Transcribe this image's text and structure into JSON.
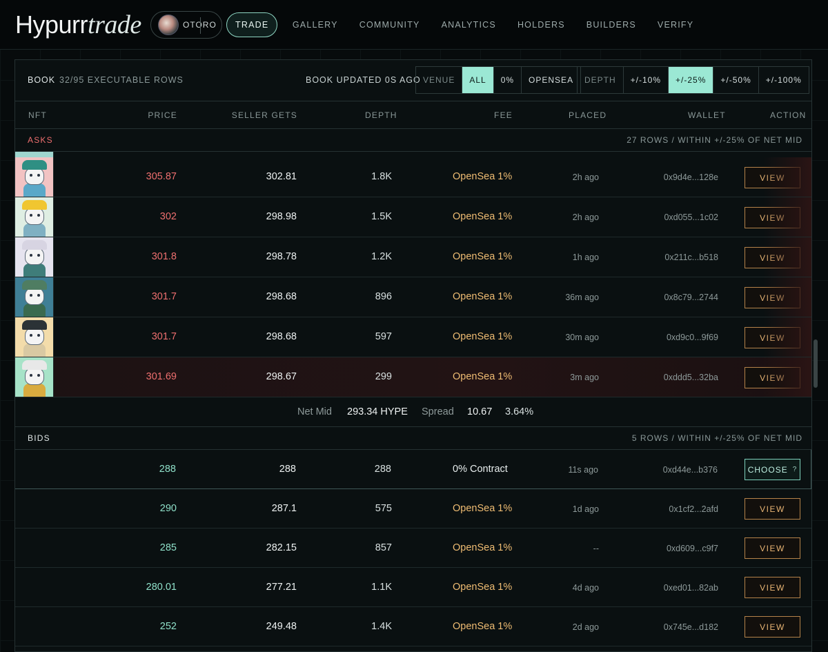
{
  "app": {
    "logo_main": "Hypurr",
    "logo_italic": "trade",
    "collection": "OTORO"
  },
  "nav": [
    "TRADE",
    "GALLERY",
    "COMMUNITY",
    "ANALYTICS",
    "HOLDERS",
    "BUILDERS",
    "VERIFY"
  ],
  "book": {
    "title": "BOOK",
    "rows_info": "32/95 EXECUTABLE ROWS",
    "updated": "BOOK UPDATED 0S AGO",
    "venue_label": "VENUE",
    "venue_options": [
      "ALL",
      "0%",
      "OPENSEA"
    ],
    "venue_selected": "ALL",
    "depth_label": "DEPTH",
    "depth_options": [
      "+/-10%",
      "+/-25%",
      "+/-50%",
      "+/-100%"
    ],
    "depth_selected": "+/-25%"
  },
  "columns": [
    "NFT",
    "PRICE",
    "SELLER GETS",
    "DEPTH",
    "FEE",
    "PLACED",
    "WALLET",
    "ACTION"
  ],
  "asks": {
    "label": "ASKS",
    "info": "27 ROWS / WITHIN +/-25% OF NET MID",
    "rows": [
      {
        "price": "305.87",
        "seller": "302.81",
        "depth": "1.8K",
        "fee": "OpenSea 1%",
        "placed": "2h ago",
        "wallet": "0x9d4e...128e",
        "action": "VIEW",
        "thumb_bg": "#f2c3c3",
        "hat": "#2f8f83",
        "body": "#5aa8c8"
      },
      {
        "price": "302",
        "seller": "298.98",
        "depth": "1.5K",
        "fee": "OpenSea 1%",
        "placed": "2h ago",
        "wallet": "0xd055...1c02",
        "action": "VIEW",
        "thumb_bg": "#dfeee3",
        "hat": "#f0c630",
        "body": "#7fb0c2"
      },
      {
        "price": "301.8",
        "seller": "298.78",
        "depth": "1.2K",
        "fee": "OpenSea 1%",
        "placed": "1h ago",
        "wallet": "0x211c...b518",
        "action": "VIEW",
        "thumb_bg": "#e6e4ef",
        "hat": "#d7d4e2",
        "body": "#3f7d7a"
      },
      {
        "price": "301.7",
        "seller": "298.68",
        "depth": "896",
        "fee": "OpenSea 1%",
        "placed": "36m ago",
        "wallet": "0x8c79...2744",
        "action": "VIEW",
        "thumb_bg": "#3f7f96",
        "hat": "#4f7d62",
        "body": "#3a6a4f"
      },
      {
        "price": "301.7",
        "seller": "298.68",
        "depth": "597",
        "fee": "OpenSea 1%",
        "placed": "30m ago",
        "wallet": "0xd9c0...9f69",
        "action": "VIEW",
        "thumb_bg": "#f3dcaa",
        "hat": "#2b3236",
        "body": "#d9c9a3"
      },
      {
        "price": "301.69",
        "seller": "298.67",
        "depth": "299",
        "fee": "OpenSea 1%",
        "placed": "3m ago",
        "wallet": "0xddd5...32ba",
        "action": "VIEW",
        "thumb_bg": "#a7e3c8",
        "hat": "#e8e8e8",
        "body": "#d9ab3f"
      }
    ]
  },
  "net_mid": {
    "label": "Net Mid",
    "value": "293.34 HYPE",
    "spread_label": "Spread",
    "spread_value": "10.67",
    "spread_pct": "3.64%"
  },
  "bids": {
    "label": "BIDS",
    "info": "5 ROWS / WITHIN +/-25% OF NET MID",
    "rows": [
      {
        "price": "288",
        "seller": "288",
        "depth": "288",
        "fee": "0% Contract",
        "placed": "11s ago",
        "wallet": "0xd44e...b376",
        "action": "CHOOSE",
        "action_suffix": "?"
      },
      {
        "price": "290",
        "seller": "287.1",
        "depth": "575",
        "fee": "OpenSea 1%",
        "placed": "1d ago",
        "wallet": "0x1cf2...2afd",
        "action": "VIEW"
      },
      {
        "price": "285",
        "seller": "282.15",
        "depth": "857",
        "fee": "OpenSea 1%",
        "placed": "--",
        "wallet": "0xd609...c9f7",
        "action": "VIEW"
      },
      {
        "price": "280.01",
        "seller": "277.21",
        "depth": "1.1K",
        "fee": "OpenSea 1%",
        "placed": "4d ago",
        "wallet": "0xed01...82ab",
        "action": "VIEW"
      },
      {
        "price": "252",
        "seller": "249.48",
        "depth": "1.4K",
        "fee": "OpenSea 1%",
        "placed": "2d ago",
        "wallet": "0x745e...d182",
        "action": "VIEW"
      }
    ]
  },
  "colors": {
    "ask": "#ee6f6f",
    "bid": "#8fe0c9",
    "fee": "#f0bd73",
    "accent": "#9be8d4",
    "action": "#e9b574"
  }
}
